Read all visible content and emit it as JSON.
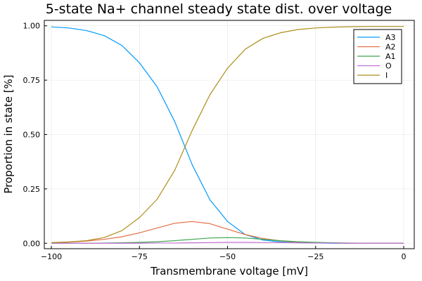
{
  "chart_data": {
    "type": "line",
    "title": "5-state Na+ channel steady state dist. over voltage",
    "xlabel": "Transmembrane voltage [mV]",
    "ylabel": "Proportion in state [%]",
    "xlim": [
      -102,
      3
    ],
    "ylim": [
      -0.025,
      1.025
    ],
    "xticks": [
      -100,
      -75,
      -50,
      -25,
      0
    ],
    "xtick_labels": [
      "−100",
      "−75",
      "−50",
      "−25",
      "0"
    ],
    "yticks": [
      0,
      0.25,
      0.5,
      0.75,
      1
    ],
    "ytick_labels": [
      "0.00",
      "0.25",
      "0.50",
      "0.75",
      "1.00"
    ],
    "grid": true,
    "legend_position": "top-right",
    "x": [
      -100,
      -95,
      -90,
      -85,
      -80,
      -75,
      -70,
      -65,
      -60,
      -55,
      -50,
      -45,
      -40,
      -35,
      -30,
      -25,
      -20,
      -15,
      -10,
      -5,
      0
    ],
    "series": [
      {
        "name": "A3",
        "color": "#009AFA",
        "values": [
          0.995,
          0.99,
          0.978,
          0.955,
          0.91,
          0.83,
          0.72,
          0.56,
          0.36,
          0.2,
          0.1,
          0.04,
          0.015,
          0.006,
          0.002,
          0.001,
          0,
          0,
          0,
          0,
          0
        ]
      },
      {
        "name": "A2",
        "color": "#E36F47",
        "values": [
          0.002,
          0.005,
          0.01,
          0.018,
          0.03,
          0.048,
          0.07,
          0.092,
          0.1,
          0.09,
          0.065,
          0.04,
          0.022,
          0.011,
          0.005,
          0.002,
          0.001,
          0,
          0,
          0,
          0
        ]
      },
      {
        "name": "A1",
        "color": "#3EA44E",
        "values": [
          0,
          0,
          0,
          0.001,
          0.002,
          0.004,
          0.007,
          0.012,
          0.018,
          0.024,
          0.026,
          0.024,
          0.018,
          0.012,
          0.007,
          0.004,
          0.002,
          0.001,
          0,
          0,
          0
        ]
      },
      {
        "name": "O",
        "color": "#C271D2",
        "values": [
          0,
          0,
          0,
          0,
          0,
          0,
          0.001,
          0.001,
          0.002,
          0.003,
          0.004,
          0.004,
          0.003,
          0.003,
          0.002,
          0.001,
          0.001,
          0,
          0,
          0,
          0
        ]
      },
      {
        "name": "I",
        "color": "#AC8D18",
        "values": [
          0.003,
          0.006,
          0.012,
          0.026,
          0.058,
          0.118,
          0.202,
          0.335,
          0.52,
          0.683,
          0.805,
          0.892,
          0.942,
          0.968,
          0.983,
          0.99,
          0.994,
          0.996,
          0.997,
          0.997,
          0.997
        ]
      }
    ]
  }
}
